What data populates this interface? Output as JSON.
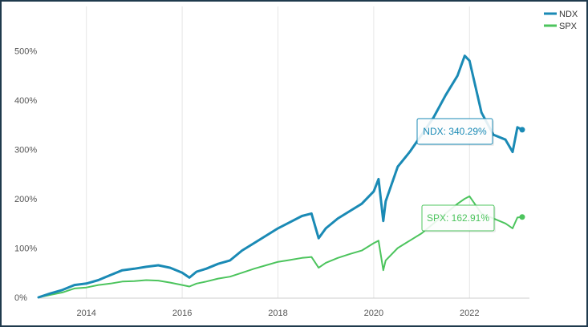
{
  "chart_data": {
    "type": "line",
    "title": "",
    "xlabel": "",
    "ylabel": "",
    "x_ticks": [
      "2014",
      "2016",
      "2018",
      "2020",
      "2022"
    ],
    "y_ticks": [
      "0%",
      "100%",
      "200%",
      "300%",
      "400%",
      "500%"
    ],
    "xlim": [
      2013.0,
      2023.25
    ],
    "ylim": [
      0,
      550
    ],
    "grid": "vertical",
    "legend": "top-right",
    "series": [
      {
        "name": "NDX",
        "color": "#1a8ab5",
        "x": [
          2013.0,
          2013.25,
          2013.5,
          2013.75,
          2014.0,
          2014.25,
          2014.5,
          2014.75,
          2015.0,
          2015.25,
          2015.5,
          2015.75,
          2016.0,
          2016.15,
          2016.3,
          2016.5,
          2016.75,
          2017.0,
          2017.25,
          2017.5,
          2017.75,
          2018.0,
          2018.2,
          2018.5,
          2018.7,
          2018.85,
          2019.0,
          2019.25,
          2019.5,
          2019.75,
          2020.0,
          2020.1,
          2020.2,
          2020.25,
          2020.5,
          2020.75,
          2021.0,
          2021.25,
          2021.5,
          2021.75,
          2021.9,
          2022.0,
          2022.25,
          2022.5,
          2022.75,
          2022.9,
          2023.0,
          2023.1
        ],
        "values": [
          0,
          8,
          15,
          25,
          28,
          35,
          45,
          55,
          58,
          62,
          65,
          60,
          50,
          40,
          52,
          58,
          68,
          75,
          95,
          110,
          125,
          140,
          150,
          165,
          170,
          120,
          140,
          160,
          175,
          190,
          215,
          240,
          155,
          195,
          265,
          295,
          330,
          365,
          410,
          450,
          490,
          480,
          375,
          330,
          320,
          295,
          345,
          340
        ]
      },
      {
        "name": "SPX",
        "color": "#4cc45d",
        "x": [
          2013.0,
          2013.25,
          2013.5,
          2013.75,
          2014.0,
          2014.25,
          2014.5,
          2014.75,
          2015.0,
          2015.25,
          2015.5,
          2015.75,
          2016.0,
          2016.15,
          2016.3,
          2016.5,
          2016.75,
          2017.0,
          2017.25,
          2017.5,
          2017.75,
          2018.0,
          2018.2,
          2018.5,
          2018.7,
          2018.85,
          2019.0,
          2019.25,
          2019.5,
          2019.75,
          2020.0,
          2020.1,
          2020.2,
          2020.25,
          2020.5,
          2020.75,
          2021.0,
          2021.25,
          2021.5,
          2021.75,
          2021.9,
          2022.0,
          2022.25,
          2022.5,
          2022.75,
          2022.9,
          2023.0,
          2023.1
        ],
        "values": [
          0,
          5,
          10,
          18,
          20,
          25,
          28,
          32,
          33,
          35,
          34,
          30,
          25,
          22,
          28,
          32,
          38,
          42,
          50,
          58,
          65,
          72,
          75,
          80,
          82,
          60,
          70,
          80,
          88,
          95,
          110,
          115,
          55,
          75,
          100,
          115,
          130,
          150,
          170,
          190,
          200,
          205,
          170,
          160,
          150,
          140,
          162,
          163
        ]
      }
    ],
    "annotations": [
      {
        "label": "NDX: 340.29%",
        "series": "NDX"
      },
      {
        "label": "SPX: 162.91%",
        "series": "SPX"
      }
    ]
  }
}
